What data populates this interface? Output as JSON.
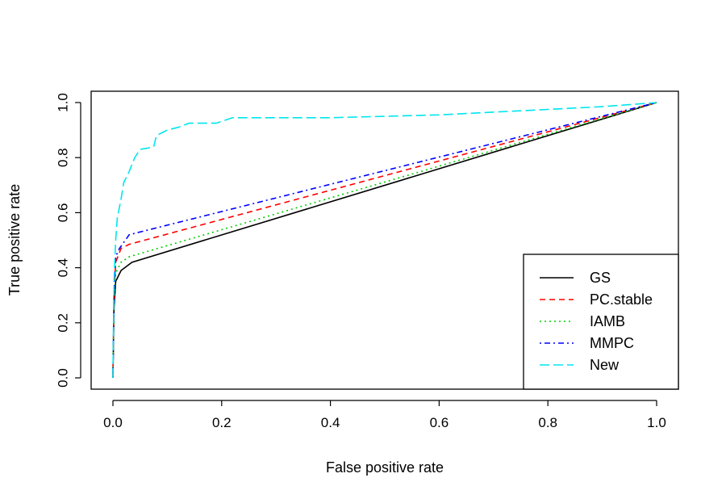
{
  "chart_data": {
    "type": "line",
    "title": "",
    "xlabel": "False positive rate",
    "ylabel": "True positive rate",
    "xlim": [
      0,
      1
    ],
    "ylim": [
      0,
      1
    ],
    "x_ticks": [
      "0.0",
      "0.2",
      "0.4",
      "0.6",
      "0.8",
      "1.0"
    ],
    "y_ticks": [
      "0.0",
      "0.2",
      "0.4",
      "0.6",
      "0.8",
      "1.0"
    ],
    "grid": false,
    "legend_position": "bottom-right",
    "series": [
      {
        "name": "GS",
        "color": "#000000",
        "dash": "solid",
        "points": [
          [
            0,
            0
          ],
          [
            0.002,
            0.25
          ],
          [
            0.005,
            0.35
          ],
          [
            0.015,
            0.39
          ],
          [
            0.035,
            0.42
          ],
          [
            1,
            1
          ]
        ]
      },
      {
        "name": "PC.stable",
        "color": "#ff0000",
        "dash": "dashed",
        "points": [
          [
            0,
            0
          ],
          [
            0.002,
            0.3
          ],
          [
            0.005,
            0.42
          ],
          [
            0.015,
            0.47
          ],
          [
            0.03,
            0.485
          ],
          [
            1,
            1
          ]
        ]
      },
      {
        "name": "IAMB",
        "color": "#00cd00",
        "dash": "dotted",
        "points": [
          [
            0,
            0
          ],
          [
            0.002,
            0.28
          ],
          [
            0.005,
            0.38
          ],
          [
            0.015,
            0.42
          ],
          [
            0.03,
            0.44
          ],
          [
            1,
            1
          ]
        ]
      },
      {
        "name": "MMPC",
        "color": "#0000ff",
        "dash": "dotdash",
        "points": [
          [
            0,
            0
          ],
          [
            0.002,
            0.3
          ],
          [
            0.005,
            0.44
          ],
          [
            0.012,
            0.47
          ],
          [
            0.03,
            0.52
          ],
          [
            1,
            1
          ]
        ]
      },
      {
        "name": "New",
        "color": "#00e5ee",
        "dash": "longdash",
        "points": [
          [
            0,
            0
          ],
          [
            0.002,
            0.35
          ],
          [
            0.005,
            0.5
          ],
          [
            0.008,
            0.58
          ],
          [
            0.015,
            0.65
          ],
          [
            0.02,
            0.71
          ],
          [
            0.03,
            0.75
          ],
          [
            0.04,
            0.8
          ],
          [
            0.05,
            0.83
          ],
          [
            0.065,
            0.835
          ],
          [
            0.075,
            0.84
          ],
          [
            0.08,
            0.88
          ],
          [
            0.09,
            0.89
          ],
          [
            0.1,
            0.9
          ],
          [
            0.12,
            0.91
          ],
          [
            0.14,
            0.925
          ],
          [
            0.19,
            0.925
          ],
          [
            0.22,
            0.945
          ],
          [
            0.4,
            0.945
          ],
          [
            0.6,
            0.955
          ],
          [
            0.8,
            0.975
          ],
          [
            0.9,
            0.985
          ],
          [
            1,
            1
          ]
        ]
      }
    ]
  }
}
